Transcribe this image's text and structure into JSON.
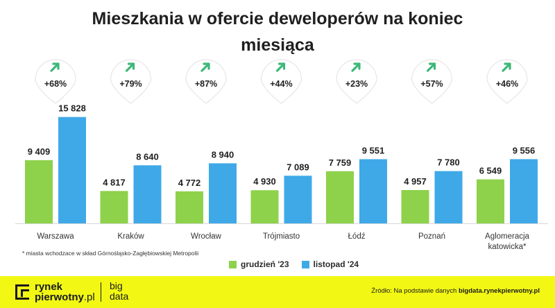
{
  "chart_data": {
    "type": "bar",
    "title": "Mieszkania w ofercie deweloperów na koniec miesiąca",
    "categories": [
      "Warszawa",
      "Kraków",
      "Wrocław",
      "Trójmiasto",
      "Łódź",
      "Poznań",
      "Aglomeracja katowicka*"
    ],
    "series": [
      {
        "name": "grudzień '23",
        "color": "#8dd24a",
        "values": [
          9409,
          4817,
          4772,
          4930,
          7759,
          4957,
          6549
        ],
        "labels": [
          "9 409",
          "4 817",
          "4 772",
          "4 930",
          "7 759",
          "4 957",
          "6 549"
        ]
      },
      {
        "name": "listopad '24",
        "color": "#3fa9e8",
        "values": [
          15828,
          8640,
          8940,
          7089,
          9551,
          7780,
          9556
        ],
        "labels": [
          "15 828",
          "8 640",
          "8 940",
          "7 089",
          "9 551",
          "7 780",
          "9 556"
        ]
      }
    ],
    "changes": [
      "+68%",
      "+79%",
      "+87%",
      "+44%",
      "+23%",
      "+57%",
      "+46%"
    ],
    "change_icon": "arrow-up-right-icon",
    "change_color": "#3cb878",
    "ylim": [
      0,
      16000
    ],
    "grid": false,
    "legend_position": "bottom"
  },
  "footnote": "* miasta wchodzace w skład Górnośląsko-Zagłębiowskiej Metropolii",
  "footer": {
    "logo_line1": "rynek",
    "logo_line2": "pierwotny",
    "logo_suffix": ".pl",
    "logo_right_line1": "big",
    "logo_right_line2": "data",
    "source_prefix": "Źródło: Na podstawie danych ",
    "source_link": "bigdata.rynekpierwotny.pl",
    "background": "#f2f814"
  }
}
